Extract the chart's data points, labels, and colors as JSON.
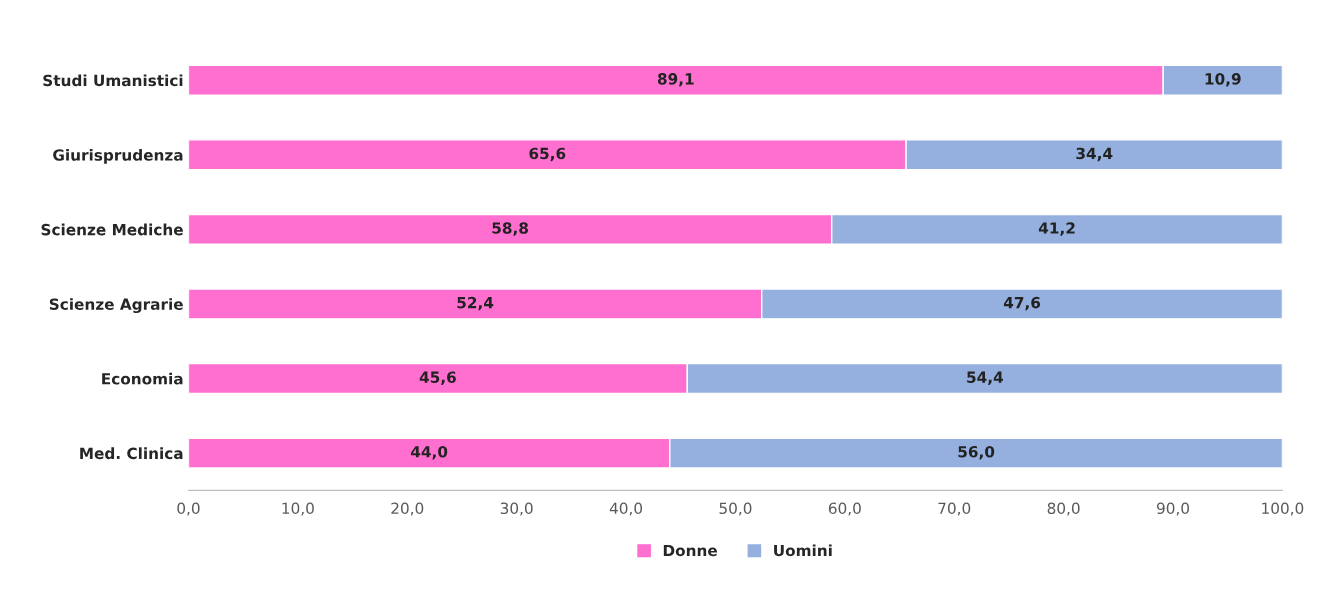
{
  "chart_data": {
    "type": "bar",
    "orientation": "horizontal",
    "stacked": true,
    "categories": [
      "Studi Umanistici",
      "Giurisprudenza",
      "Scienze Mediche",
      "Scienze Agrarie",
      "Economia",
      "Med. Clinica"
    ],
    "series": [
      {
        "name": "Donne",
        "color": "#ff6fd0",
        "values": [
          89.1,
          65.6,
          58.8,
          52.4,
          45.6,
          44.0
        ],
        "value_labels": [
          "89,1",
          "65,6",
          "58,8",
          "52,4",
          "45,6",
          "44,0"
        ]
      },
      {
        "name": "Uomini",
        "color": "#95b0de",
        "values": [
          10.9,
          34.4,
          41.2,
          47.6,
          54.4,
          56.0
        ],
        "value_labels": [
          "10,9",
          "34,4",
          "41,2",
          "47,6",
          "54,4",
          "56,0"
        ]
      }
    ],
    "xlim": [
      0,
      100
    ],
    "xticks": [
      {
        "value": 0,
        "label": "0,0"
      },
      {
        "value": 10,
        "label": "10,0"
      },
      {
        "value": 20,
        "label": "20,0"
      },
      {
        "value": 30,
        "label": "30,0"
      },
      {
        "value": 40,
        "label": "40,0"
      },
      {
        "value": 50,
        "label": "50,0"
      },
      {
        "value": 60,
        "label": "60,0"
      },
      {
        "value": 70,
        "label": "70,0"
      },
      {
        "value": 80,
        "label": "80,0"
      },
      {
        "value": 90,
        "label": "90,0"
      },
      {
        "value": 100,
        "label": "100,0"
      }
    ],
    "grid": false,
    "legend": "bottom"
  }
}
